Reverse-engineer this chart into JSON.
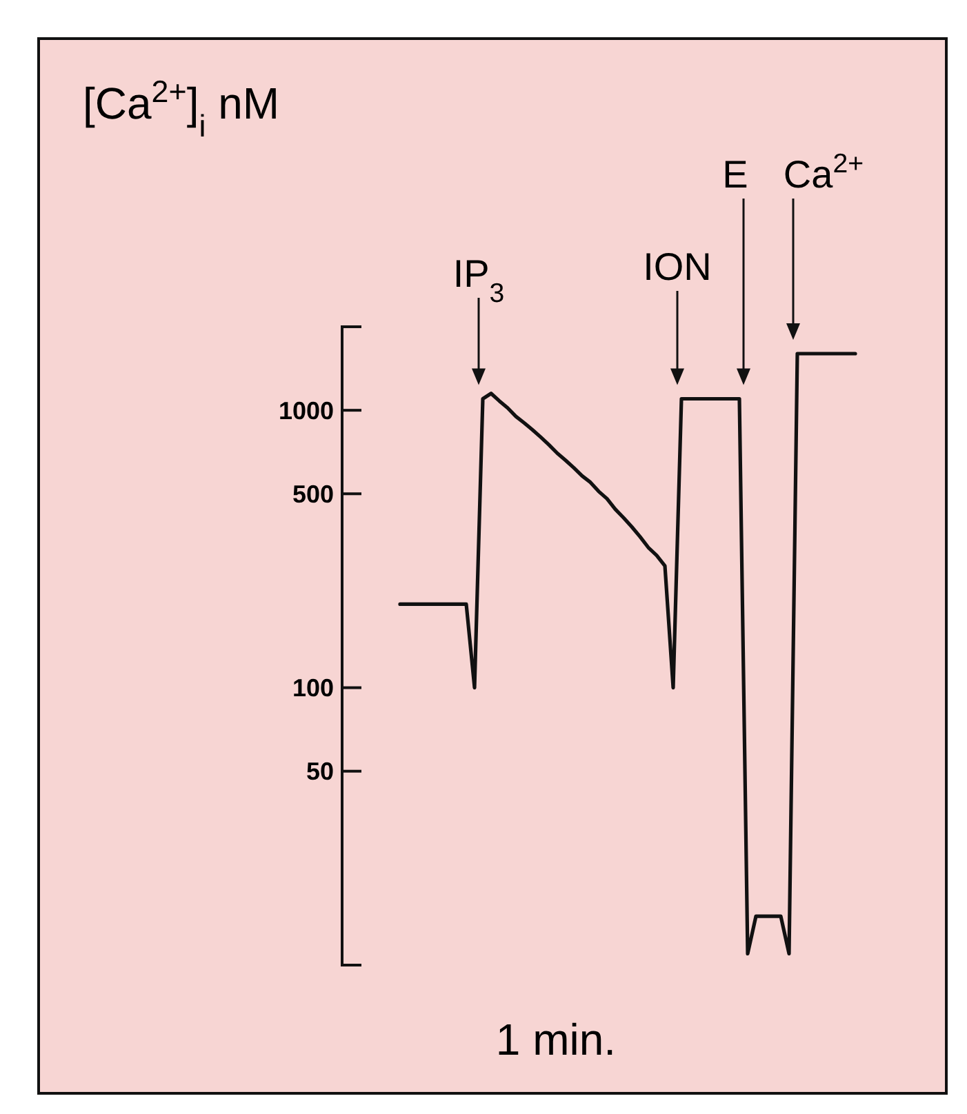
{
  "chart_data": {
    "type": "line",
    "ylabel": "[Ca$^{2+}$]$_{i}$ nM",
    "xlabel": "1 min.",
    "categories": [
      null,
      null,
      null,
      null,
      null,
      null,
      null,
      null,
      null,
      null,
      null,
      null,
      null,
      null,
      null,
      null,
      null,
      null,
      null,
      null,
      null,
      null,
      null,
      null,
      null,
      null,
      null,
      null,
      null,
      null,
      null,
      null,
      null,
      null,
      null,
      null,
      null,
      null,
      null,
      null,
      null,
      null,
      null,
      null,
      null,
      null,
      null,
      null,
      null,
      null,
      null,
      null,
      null,
      null,
      null,
      null
    ],
    "series": [
      {
        "color": "#111111",
        "values": [
          200,
          200,
          200,
          200,
          200,
          200,
          200,
          200,
          200,
          100,
          1100,
          1150,
          1080,
          1020,
          950,
          900,
          850,
          800,
          750,
          700,
          660,
          620,
          580,
          550,
          510,
          480,
          440,
          410,
          380,
          350,
          320,
          300,
          275,
          100,
          1100,
          1100,
          1100,
          1100,
          1100,
          1100,
          1100,
          1100,
          11,
          15,
          15,
          15,
          15,
          11,
          1600,
          1600,
          1600,
          1600,
          1600,
          1600,
          1600,
          1600
        ]
      }
    ],
    "log": true,
    "ylim": [
      10,
      2000
    ],
    "yticks": [
      50,
      100,
      500,
      1000
    ],
    "annotations": [
      "IP$_{3}$",
      "ION",
      "E",
      "Ca$^{2+}$"
    ],
    "marker": "none",
    "line_style": "solid",
    "grid": false
  }
}
